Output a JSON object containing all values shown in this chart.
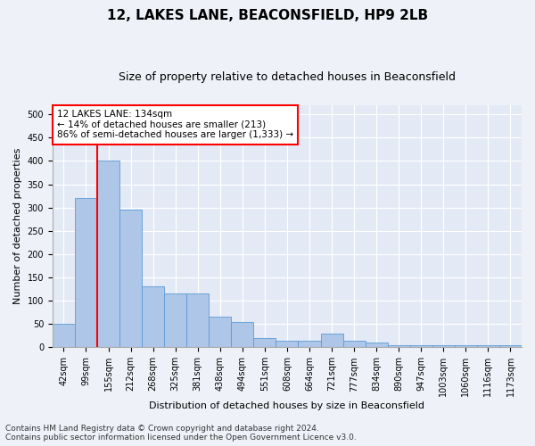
{
  "title": "12, LAKES LANE, BEACONSFIELD, HP9 2LB",
  "subtitle": "Size of property relative to detached houses in Beaconsfield",
  "xlabel": "Distribution of detached houses by size in Beaconsfield",
  "ylabel": "Number of detached properties",
  "footer_line1": "Contains HM Land Registry data © Crown copyright and database right 2024.",
  "footer_line2": "Contains public sector information licensed under the Open Government Licence v3.0.",
  "categories": [
    "42sqm",
    "99sqm",
    "155sqm",
    "212sqm",
    "268sqm",
    "325sqm",
    "381sqm",
    "438sqm",
    "494sqm",
    "551sqm",
    "608sqm",
    "664sqm",
    "721sqm",
    "777sqm",
    "834sqm",
    "890sqm",
    "947sqm",
    "1003sqm",
    "1060sqm",
    "1116sqm",
    "1173sqm"
  ],
  "values": [
    50,
    320,
    400,
    295,
    130,
    115,
    115,
    65,
    55,
    20,
    15,
    15,
    30,
    15,
    10,
    5,
    5,
    5,
    5,
    5,
    5
  ],
  "bar_color": "#aec6e8",
  "bar_edge_color": "#5b9bd5",
  "marker_bin_index": 1.5,
  "marker_color": "red",
  "annotation_text": "12 LAKES LANE: 134sqm\n← 14% of detached houses are smaller (213)\n86% of semi-detached houses are larger (1,333) →",
  "annotation_box_color": "white",
  "annotation_box_edge": "red",
  "ylim": [
    0,
    520
  ],
  "yticks": [
    0,
    50,
    100,
    150,
    200,
    250,
    300,
    350,
    400,
    450,
    500
  ],
  "background_color": "#eef2f8",
  "plot_background_color": "#e4eaf5",
  "grid_color": "white",
  "title_fontsize": 11,
  "subtitle_fontsize": 9,
  "axis_label_fontsize": 8,
  "tick_fontsize": 7,
  "annotation_fontsize": 7.5,
  "footer_fontsize": 6.5
}
